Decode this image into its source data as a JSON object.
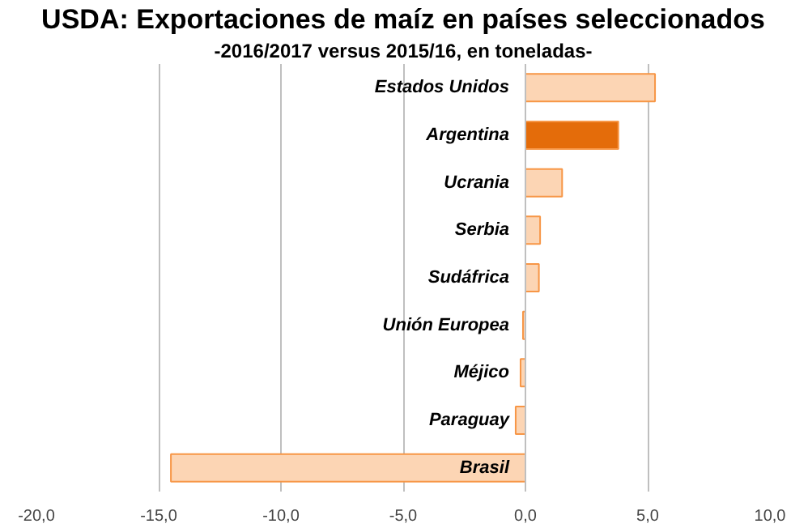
{
  "chart_data": {
    "type": "bar",
    "orientation": "horizontal",
    "title": "USDA: Exportaciones de maíz en países seleccionados",
    "subtitle": "-2016/2017 versus 2015/16, en toneladas-",
    "categories": [
      "Estados Unidos",
      "Argentina",
      "Ucrania",
      "Serbia",
      "Sudáfrica",
      "Unión Europea",
      "Méjico",
      "Paraguay",
      "Brasil"
    ],
    "values": [
      5.3,
      3.8,
      1.5,
      0.6,
      0.55,
      -0.1,
      -0.2,
      -0.4,
      -14.5
    ],
    "colors": [
      "#fcd5b4",
      "#e46c0a",
      "#fcd5b4",
      "#fcd5b4",
      "#fcd5b4",
      "#fcd5b4",
      "#fcd5b4",
      "#fcd5b4",
      "#fcd5b4"
    ],
    "xlim": [
      -20,
      10
    ],
    "xticks": [
      {
        "value": -20,
        "label": "-20,0"
      },
      {
        "value": -15,
        "label": "-15,0"
      },
      {
        "value": -10,
        "label": "-10,0"
      },
      {
        "value": -5,
        "label": "-5,0"
      },
      {
        "value": 0,
        "label": "0,0"
      },
      {
        "value": 5,
        "label": "5,0"
      },
      {
        "value": 10,
        "label": "10,0"
      }
    ],
    "grid": "x"
  }
}
